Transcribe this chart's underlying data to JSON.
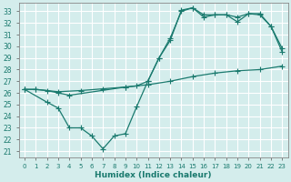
{
  "xlabel": "Humidex (Indice chaleur)",
  "background_color": "#d4edec",
  "grid_color": "#ffffff",
  "line_color": "#1a7a6e",
  "xlim": [
    -0.5,
    23.5
  ],
  "ylim": [
    20.5,
    33.7
  ],
  "xticks": [
    0,
    1,
    2,
    3,
    4,
    5,
    6,
    7,
    8,
    9,
    10,
    11,
    12,
    13,
    14,
    15,
    16,
    17,
    18,
    19,
    20,
    21,
    22,
    23
  ],
  "yticks": [
    21,
    22,
    23,
    24,
    25,
    26,
    27,
    28,
    29,
    30,
    31,
    32,
    33
  ],
  "line1_x": [
    0,
    1,
    3,
    5,
    7,
    9,
    11,
    13,
    15,
    17,
    19,
    21,
    23
  ],
  "line1_y": [
    26.3,
    26.3,
    26.1,
    26.2,
    26.35,
    26.5,
    26.7,
    27.0,
    27.4,
    27.7,
    27.9,
    28.0,
    28.3
  ],
  "line2_x": [
    0,
    1,
    2,
    3,
    4,
    9,
    10,
    11,
    12,
    13,
    14,
    15,
    16,
    17,
    18,
    19,
    20,
    21,
    22,
    23
  ],
  "line2_y": [
    26.3,
    26.3,
    26.2,
    26.0,
    25.8,
    26.5,
    26.6,
    27.0,
    29.0,
    30.5,
    33.1,
    33.3,
    32.7,
    32.7,
    32.7,
    32.5,
    32.8,
    32.8,
    31.7,
    29.8
  ],
  "line3_x": [
    0,
    2,
    3,
    4,
    5,
    6,
    7,
    8,
    9,
    10,
    11,
    12,
    13,
    14,
    15,
    16,
    17,
    18,
    19,
    20,
    21,
    22,
    23
  ],
  "line3_y": [
    26.3,
    25.2,
    24.7,
    23.0,
    23.0,
    22.3,
    21.2,
    22.3,
    22.5,
    24.8,
    27.0,
    29.0,
    30.7,
    33.0,
    33.3,
    32.5,
    32.7,
    32.7,
    32.1,
    32.8,
    32.7,
    31.7,
    29.5
  ]
}
